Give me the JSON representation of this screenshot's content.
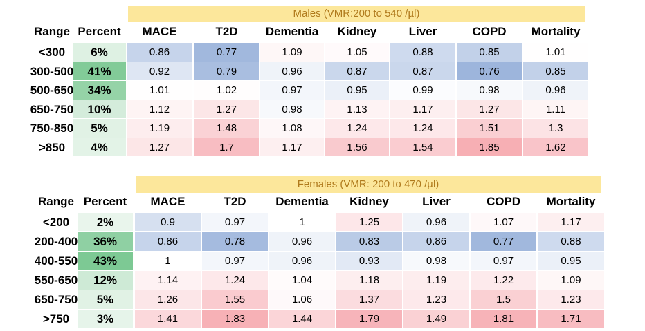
{
  "chart_data": [
    {
      "type": "table",
      "title": "Males (VMR:200 to 540 /µl)",
      "row_header": "Range",
      "percent_header": "Percent",
      "columns": [
        "MACE",
        "T2D",
        "Dementia",
        "Kidney",
        "Liver",
        "COPD",
        "Mortality"
      ],
      "rows": [
        {
          "range": "<300",
          "percent": "6%",
          "values": [
            "0.86",
            "0.77",
            "1.09",
            "1.05",
            "0.88",
            "0.85",
            "1.01"
          ]
        },
        {
          "range": "300-500",
          "percent": "41%",
          "values": [
            "0.92",
            "0.79",
            "0.96",
            "0.87",
            "0.87",
            "0.76",
            "0.85"
          ]
        },
        {
          "range": "500-650",
          "percent": "34%",
          "values": [
            "1.01",
            "1.02",
            "0.97",
            "0.95",
            "0.99",
            "0.98",
            "0.96"
          ]
        },
        {
          "range": "650-750",
          "percent": "10%",
          "values": [
            "1.12",
            "1.27",
            "0.98",
            "1.13",
            "1.17",
            "1.27",
            "1.11"
          ]
        },
        {
          "range": "750-850",
          "percent": "5%",
          "values": [
            "1.19",
            "1.48",
            "1.08",
            "1.24",
            "1.24",
            "1.51",
            "1.3"
          ]
        },
        {
          "range": ">850",
          "percent": "4%",
          "values": [
            "1.27",
            "1.7",
            "1.17",
            "1.56",
            "1.54",
            "1.85",
            "1.62"
          ]
        }
      ]
    },
    {
      "type": "table",
      "title": "Females (VMR: 200 to 470 /µl)",
      "row_header": "Range",
      "percent_header": "Percent",
      "columns": [
        "MACE",
        "T2D",
        "Dementia",
        "Kidney",
        "Liver",
        "COPD",
        "Mortality"
      ],
      "rows": [
        {
          "range": "<200",
          "percent": "2%",
          "values": [
            "0.9",
            "0.97",
            "1",
            "1.25",
            "0.96",
            "1.07",
            "1.17"
          ]
        },
        {
          "range": "200-400",
          "percent": "36%",
          "values": [
            "0.86",
            "0.78",
            "0.96",
            "0.83",
            "0.86",
            "0.77",
            "0.88"
          ]
        },
        {
          "range": "400-550",
          "percent": "43%",
          "values": [
            "1",
            "0.97",
            "0.96",
            "0.93",
            "0.98",
            "0.97",
            "0.95"
          ]
        },
        {
          "range": "550-650",
          "percent": "12%",
          "values": [
            "1.14",
            "1.24",
            "1.04",
            "1.18",
            "1.19",
            "1.22",
            "1.09"
          ]
        },
        {
          "range": "650-750",
          "percent": "5%",
          "values": [
            "1.26",
            "1.55",
            "1.06",
            "1.37",
            "1.23",
            "1.5",
            "1.23"
          ]
        },
        {
          "range": ">750",
          "percent": "3%",
          "values": [
            "1.41",
            "1.83",
            "1.44",
            "1.79",
            "1.49",
            "1.81",
            "1.71"
          ]
        }
      ]
    }
  ],
  "colors": {
    "header_band": "#fce79b",
    "header_text": "#b07a1c",
    "low_blue": "#9db5dc",
    "neutral": "#ffffff",
    "high_red": "#f6aab0",
    "percent_green": "#7dc994"
  }
}
